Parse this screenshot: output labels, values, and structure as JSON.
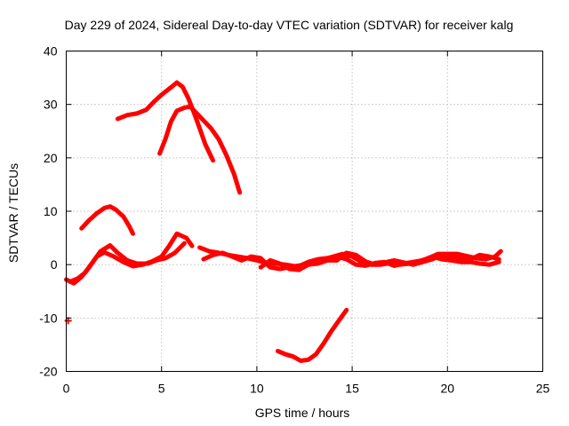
{
  "chart_data": {
    "type": "scatter",
    "title": "Day 229 of 2024, Sidereal Day-to-day VTEC variation (SDTVAR) for receiver kalg",
    "xlabel": "GPS time / hours",
    "ylabel": "SDTVAR / TECUs",
    "xlim": [
      0,
      25
    ],
    "ylim": [
      -20,
      40
    ],
    "xticks": [
      0,
      5,
      10,
      15,
      20,
      25
    ],
    "yticks": [
      -20,
      -10,
      0,
      10,
      20,
      30,
      40
    ],
    "grid": true,
    "color": "#ff0000",
    "series": [
      {
        "name": "arc-1",
        "points": [
          [
            2.7,
            27.3
          ],
          [
            3.2,
            28.0
          ],
          [
            3.7,
            28.3
          ],
          [
            4.2,
            29.0
          ],
          [
            4.6,
            30.5
          ],
          [
            5.0,
            31.8
          ],
          [
            5.5,
            33.2
          ],
          [
            5.8,
            34.1
          ],
          [
            6.1,
            33.3
          ],
          [
            6.4,
            31.2
          ],
          [
            6.7,
            28.5
          ],
          [
            7.0,
            25.5
          ],
          [
            7.3,
            22.5
          ],
          [
            7.7,
            19.5
          ]
        ]
      },
      {
        "name": "arc-2",
        "points": [
          [
            4.9,
            20.8
          ],
          [
            5.2,
            23.5
          ],
          [
            5.5,
            26.8
          ],
          [
            5.8,
            28.8
          ],
          [
            6.2,
            29.4
          ],
          [
            6.5,
            29.6
          ],
          [
            6.8,
            28.5
          ],
          [
            7.2,
            27.0
          ],
          [
            7.6,
            25.5
          ],
          [
            8.0,
            23.5
          ],
          [
            8.4,
            20.5
          ],
          [
            8.8,
            17.0
          ],
          [
            9.1,
            13.5
          ]
        ]
      },
      {
        "name": "arc-3",
        "points": [
          [
            0.8,
            6.8
          ],
          [
            1.2,
            8.3
          ],
          [
            1.6,
            9.6
          ],
          [
            2.0,
            10.6
          ],
          [
            2.3,
            10.9
          ],
          [
            2.6,
            10.3
          ],
          [
            3.0,
            9.0
          ],
          [
            3.3,
            7.2
          ],
          [
            3.5,
            5.8
          ]
        ]
      },
      {
        "name": "arc-4",
        "points": [
          [
            0.0,
            -2.8
          ],
          [
            0.4,
            -3.5
          ],
          [
            0.8,
            -2.3
          ],
          [
            1.2,
            -0.5
          ],
          [
            1.6,
            1.5
          ],
          [
            2.0,
            2.3
          ],
          [
            2.5,
            1.5
          ],
          [
            3.0,
            0.5
          ],
          [
            3.5,
            -0.3
          ],
          [
            4.0,
            0.0
          ],
          [
            4.5,
            0.6
          ],
          [
            5.0,
            1.5
          ],
          [
            5.4,
            3.5
          ],
          [
            5.8,
            5.8
          ],
          [
            6.3,
            5.0
          ],
          [
            6.6,
            3.5
          ]
        ]
      },
      {
        "name": "arc-5",
        "points": [
          [
            0.2,
            -3.2
          ],
          [
            0.6,
            -2.6
          ],
          [
            1.0,
            -1.5
          ],
          [
            1.4,
            0.5
          ],
          [
            1.8,
            2.5
          ],
          [
            2.3,
            3.6
          ],
          [
            2.7,
            2.2
          ],
          [
            3.2,
            0.8
          ],
          [
            3.7,
            0.2
          ],
          [
            4.3,
            0.2
          ],
          [
            4.7,
            0.8
          ],
          [
            5.2,
            1.2
          ],
          [
            5.7,
            2.2
          ],
          [
            6.2,
            4.0
          ]
        ]
      },
      {
        "name": "arc-6",
        "points": [
          [
            7.0,
            3.2
          ],
          [
            7.5,
            2.5
          ],
          [
            8.0,
            2.2
          ],
          [
            8.5,
            1.8
          ],
          [
            9.0,
            1.5
          ],
          [
            9.5,
            1.2
          ],
          [
            10.0,
            0.8
          ],
          [
            10.5,
            0.3
          ],
          [
            11.0,
            0.2
          ],
          [
            11.5,
            0.0
          ],
          [
            12.0,
            -0.3
          ],
          [
            12.5,
            0.0
          ],
          [
            13.0,
            0.5
          ],
          [
            13.5,
            1.0
          ],
          [
            14.0,
            1.5
          ],
          [
            14.5,
            2.0
          ],
          [
            15.0,
            1.5
          ],
          [
            15.5,
            0.5
          ],
          [
            16.0,
            0.0
          ],
          [
            16.5,
            0.0
          ],
          [
            17.0,
            0.3
          ],
          [
            17.5,
            0.0
          ],
          [
            18.0,
            0.2
          ],
          [
            18.5,
            0.6
          ],
          [
            19.0,
            1.2
          ],
          [
            19.5,
            2.0
          ],
          [
            20.0,
            2.0
          ],
          [
            20.5,
            2.0
          ],
          [
            21.0,
            1.6
          ],
          [
            21.5,
            1.2
          ],
          [
            22.0,
            1.0
          ],
          [
            22.5,
            1.5
          ],
          [
            22.8,
            2.5
          ]
        ]
      },
      {
        "name": "arc-7",
        "points": [
          [
            7.2,
            1.0
          ],
          [
            7.7,
            1.8
          ],
          [
            8.2,
            2.2
          ],
          [
            8.7,
            1.5
          ],
          [
            9.2,
            0.8
          ],
          [
            9.7,
            1.5
          ],
          [
            10.2,
            1.2
          ],
          [
            10.7,
            -0.5
          ],
          [
            11.2,
            -0.8
          ],
          [
            11.7,
            -0.5
          ],
          [
            12.2,
            -0.3
          ],
          [
            12.7,
            0.5
          ],
          [
            13.2,
            1.0
          ],
          [
            13.7,
            1.2
          ],
          [
            14.2,
            1.5
          ],
          [
            14.7,
            1.0
          ],
          [
            15.2,
            0.0
          ],
          [
            15.7,
            -0.2
          ],
          [
            16.2,
            0.3
          ],
          [
            16.7,
            0.5
          ],
          [
            17.2,
            -0.2
          ],
          [
            17.7,
            0.2
          ],
          [
            18.2,
            0.5
          ],
          [
            18.7,
            0.8
          ],
          [
            19.2,
            1.5
          ],
          [
            19.7,
            1.0
          ],
          [
            20.2,
            0.8
          ],
          [
            20.7,
            0.5
          ],
          [
            21.2,
            0.5
          ],
          [
            21.7,
            0.2
          ],
          [
            22.2,
            0.0
          ],
          [
            22.7,
            0.5
          ]
        ]
      },
      {
        "name": "arc-8",
        "points": [
          [
            10.2,
            -0.5
          ],
          [
            10.7,
            0.8
          ],
          [
            11.2,
            0.2
          ],
          [
            11.7,
            -0.8
          ],
          [
            12.2,
            -1.0
          ],
          [
            12.7,
            0.0
          ],
          [
            13.2,
            0.2
          ],
          [
            13.7,
            0.8
          ],
          [
            14.2,
            0.8
          ],
          [
            14.7,
            2.2
          ],
          [
            15.2,
            1.8
          ],
          [
            15.7,
            0.6
          ],
          [
            16.2,
            0.0
          ],
          [
            16.7,
            0.4
          ],
          [
            17.2,
            0.8
          ],
          [
            17.7,
            0.4
          ],
          [
            18.2,
            0.0
          ],
          [
            18.7,
            0.5
          ],
          [
            19.2,
            1.0
          ],
          [
            19.7,
            1.8
          ],
          [
            20.2,
            1.5
          ],
          [
            20.7,
            1.2
          ],
          [
            21.2,
            1.0
          ],
          [
            21.7,
            1.8
          ],
          [
            22.2,
            1.5
          ],
          [
            22.7,
            1.0
          ]
        ]
      },
      {
        "name": "arc-9",
        "points": [
          [
            11.1,
            -16.2
          ],
          [
            11.5,
            -16.8
          ],
          [
            11.9,
            -17.2
          ],
          [
            12.3,
            -18.0
          ],
          [
            12.7,
            -17.8
          ],
          [
            13.1,
            -16.8
          ],
          [
            13.5,
            -14.8
          ],
          [
            13.9,
            -12.5
          ],
          [
            14.3,
            -10.5
          ],
          [
            14.7,
            -8.5
          ]
        ]
      },
      {
        "name": "isolated-point",
        "points": [
          [
            0.1,
            -10.5
          ]
        ]
      }
    ]
  }
}
